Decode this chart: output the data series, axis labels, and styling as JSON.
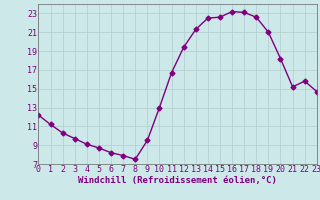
{
  "x": [
    0,
    1,
    2,
    3,
    4,
    5,
    6,
    7,
    8,
    9,
    10,
    11,
    12,
    13,
    14,
    15,
    16,
    17,
    18,
    19,
    20,
    21,
    22,
    23
  ],
  "y": [
    12.2,
    11.2,
    10.3,
    9.7,
    9.1,
    8.7,
    8.2,
    7.9,
    7.5,
    9.5,
    13.0,
    16.7,
    19.4,
    21.3,
    22.5,
    22.6,
    23.2,
    23.1,
    22.6,
    21.0,
    18.2,
    15.2,
    15.8,
    14.7
  ],
  "xlim": [
    0,
    23
  ],
  "ylim": [
    7,
    24
  ],
  "yticks": [
    7,
    9,
    11,
    13,
    15,
    17,
    19,
    21,
    23
  ],
  "xticks": [
    0,
    1,
    2,
    3,
    4,
    5,
    6,
    7,
    8,
    9,
    10,
    11,
    12,
    13,
    14,
    15,
    16,
    17,
    18,
    19,
    20,
    21,
    22,
    23
  ],
  "xlabel": "Windchill (Refroidissement éolien,°C)",
  "line_color": "#800080",
  "marker": "D",
  "marker_size": 2.5,
  "bg_color": "#cce8e8",
  "grid_color": "#b0cccc",
  "spine_color": "#666666",
  "tick_label_color": "#800080",
  "xlabel_color": "#800080",
  "xlabel_fontsize": 6.5,
  "tick_fontsize": 6.0,
  "linewidth": 1.0
}
